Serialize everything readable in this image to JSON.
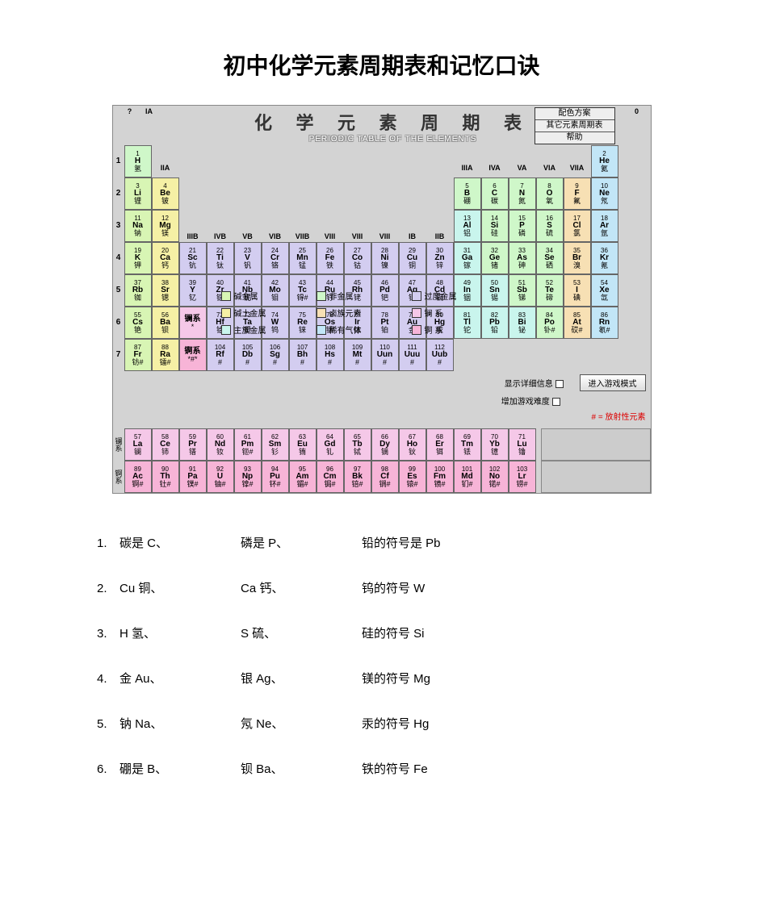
{
  "page_title": "初中化学元素周期表和记忆口诀",
  "pt_title_cn": "化 学 元 素 周 期 表",
  "pt_title_en": "PERIODIC TABLE OF THE ELEMENTS",
  "top_right": {
    "a": "配色方案",
    "b": "其它元素周期表",
    "c": "帮助"
  },
  "group_headers_all": [
    "IA",
    "IIA",
    "IIIB",
    "IVB",
    "VB",
    "VIB",
    "VIIB",
    "VIII",
    "VIII",
    "VIII",
    "IB",
    "IIB",
    "IIIA",
    "IVA",
    "VA",
    "VIA",
    "VIIA",
    "0"
  ],
  "period_labels": [
    "1",
    "2",
    "3",
    "4",
    "5",
    "6",
    "7"
  ],
  "legend_items": [
    {
      "label": "碱金属",
      "color": "#d8f5b4"
    },
    {
      "label": "非金属",
      "color": "#cff7c9"
    },
    {
      "label": "过度金属",
      "color": "#d3cdf0"
    },
    {
      "label": "碱土金属",
      "color": "#f5f0a5"
    },
    {
      "label": "卤族元素",
      "color": "#f7e0b4"
    },
    {
      "label": "镧  系",
      "color": "#f5c8e8"
    },
    {
      "label": "主族金属",
      "color": "#c9f5ed"
    },
    {
      "label": "稀有气体",
      "color": "#c2e6f7"
    },
    {
      "label": "锕  系",
      "color": "#f7b4d7"
    }
  ],
  "colors": {
    "alkali": "#d8f5b4",
    "alkearth": "#f5f0a5",
    "transition": "#d3cdf0",
    "posttrans": "#c9f5ed",
    "metalloid": "#cff7c9",
    "nonmetal": "#cff7c9",
    "halogen": "#f7e0b4",
    "noble": "#c2e6f7",
    "lanth": "#f5c8e8",
    "act": "#f7b4d7",
    "unknown": "#e8e8e8",
    "header_bg": "#d3d3d3"
  },
  "elements_row1": [
    {
      "n": "1",
      "s": "H",
      "c": "氢",
      "k": "nonmetal"
    },
    {
      "n": "2",
      "s": "He",
      "c": "氦",
      "k": "noble"
    }
  ],
  "elements_row2": [
    {
      "n": "3",
      "s": "Li",
      "c": "锂",
      "k": "alkali"
    },
    {
      "n": "4",
      "s": "Be",
      "c": "铍",
      "k": "alkearth"
    },
    {
      "n": "5",
      "s": "B",
      "c": "硼",
      "k": "metalloid"
    },
    {
      "n": "6",
      "s": "C",
      "c": "碳",
      "k": "nonmetal"
    },
    {
      "n": "7",
      "s": "N",
      "c": "氮",
      "k": "nonmetal"
    },
    {
      "n": "8",
      "s": "O",
      "c": "氧",
      "k": "nonmetal"
    },
    {
      "n": "9",
      "s": "F",
      "c": "氟",
      "k": "halogen"
    },
    {
      "n": "10",
      "s": "Ne",
      "c": "氖",
      "k": "noble"
    }
  ],
  "elements_row3": [
    {
      "n": "11",
      "s": "Na",
      "c": "钠",
      "k": "alkali"
    },
    {
      "n": "12",
      "s": "Mg",
      "c": "镁",
      "k": "alkearth"
    },
    {
      "n": "13",
      "s": "Al",
      "c": "铝",
      "k": "posttrans"
    },
    {
      "n": "14",
      "s": "Si",
      "c": "硅",
      "k": "metalloid"
    },
    {
      "n": "15",
      "s": "P",
      "c": "磷",
      "k": "nonmetal"
    },
    {
      "n": "16",
      "s": "S",
      "c": "硫",
      "k": "nonmetal"
    },
    {
      "n": "17",
      "s": "Cl",
      "c": "氯",
      "k": "halogen"
    },
    {
      "n": "18",
      "s": "Ar",
      "c": "氩",
      "k": "noble"
    }
  ],
  "elements_row4": [
    {
      "n": "19",
      "s": "K",
      "c": "钾",
      "k": "alkali"
    },
    {
      "n": "20",
      "s": "Ca",
      "c": "钙",
      "k": "alkearth"
    },
    {
      "n": "21",
      "s": "Sc",
      "c": "钪",
      "k": "transition"
    },
    {
      "n": "22",
      "s": "Ti",
      "c": "钛",
      "k": "transition"
    },
    {
      "n": "23",
      "s": "V",
      "c": "钒",
      "k": "transition"
    },
    {
      "n": "24",
      "s": "Cr",
      "c": "铬",
      "k": "transition"
    },
    {
      "n": "25",
      "s": "Mn",
      "c": "锰",
      "k": "transition"
    },
    {
      "n": "26",
      "s": "Fe",
      "c": "铁",
      "k": "transition"
    },
    {
      "n": "27",
      "s": "Co",
      "c": "钴",
      "k": "transition"
    },
    {
      "n": "28",
      "s": "Ni",
      "c": "镍",
      "k": "transition"
    },
    {
      "n": "29",
      "s": "Cu",
      "c": "铜",
      "k": "transition"
    },
    {
      "n": "30",
      "s": "Zn",
      "c": "锌",
      "k": "transition"
    },
    {
      "n": "31",
      "s": "Ga",
      "c": "镓",
      "k": "posttrans"
    },
    {
      "n": "32",
      "s": "Ge",
      "c": "锗",
      "k": "metalloid"
    },
    {
      "n": "33",
      "s": "As",
      "c": "砷",
      "k": "metalloid"
    },
    {
      "n": "34",
      "s": "Se",
      "c": "硒",
      "k": "nonmetal"
    },
    {
      "n": "35",
      "s": "Br",
      "c": "溴",
      "k": "halogen"
    },
    {
      "n": "36",
      "s": "Kr",
      "c": "氪",
      "k": "noble"
    }
  ],
  "elements_row5": [
    {
      "n": "37",
      "s": "Rb",
      "c": "铷",
      "k": "alkali"
    },
    {
      "n": "38",
      "s": "Sr",
      "c": "锶",
      "k": "alkearth"
    },
    {
      "n": "39",
      "s": "Y",
      "c": "钇",
      "k": "transition"
    },
    {
      "n": "40",
      "s": "Zr",
      "c": "锆",
      "k": "transition"
    },
    {
      "n": "41",
      "s": "Nb",
      "c": "铌",
      "k": "transition"
    },
    {
      "n": "42",
      "s": "Mo",
      "c": "钼",
      "k": "transition"
    },
    {
      "n": "43",
      "s": "Tc",
      "c": "锝#",
      "k": "transition"
    },
    {
      "n": "44",
      "s": "Ru",
      "c": "钌",
      "k": "transition"
    },
    {
      "n": "45",
      "s": "Rh",
      "c": "铑",
      "k": "transition"
    },
    {
      "n": "46",
      "s": "Pd",
      "c": "钯",
      "k": "transition"
    },
    {
      "n": "47",
      "s": "Ag",
      "c": "银",
      "k": "transition"
    },
    {
      "n": "48",
      "s": "Cd",
      "c": "镉",
      "k": "transition"
    },
    {
      "n": "49",
      "s": "In",
      "c": "铟",
      "k": "posttrans"
    },
    {
      "n": "50",
      "s": "Sn",
      "c": "锡",
      "k": "posttrans"
    },
    {
      "n": "51",
      "s": "Sb",
      "c": "锑",
      "k": "metalloid"
    },
    {
      "n": "52",
      "s": "Te",
      "c": "碲",
      "k": "metalloid"
    },
    {
      "n": "53",
      "s": "I",
      "c": "碘",
      "k": "halogen"
    },
    {
      "n": "54",
      "s": "Xe",
      "c": "氙",
      "k": "noble"
    }
  ],
  "elements_row6": [
    {
      "n": "55",
      "s": "Cs",
      "c": "铯",
      "k": "alkali"
    },
    {
      "n": "56",
      "s": "Ba",
      "c": "钡",
      "k": "alkearth"
    },
    {
      "n": "",
      "s": "镧系",
      "c": "*",
      "k": "lanth"
    },
    {
      "n": "72",
      "s": "Hf",
      "c": "铪",
      "k": "transition"
    },
    {
      "n": "73",
      "s": "Ta",
      "c": "钽",
      "k": "transition"
    },
    {
      "n": "74",
      "s": "W",
      "c": "钨",
      "k": "transition"
    },
    {
      "n": "75",
      "s": "Re",
      "c": "铼",
      "k": "transition"
    },
    {
      "n": "76",
      "s": "Os",
      "c": "锇",
      "k": "transition"
    },
    {
      "n": "77",
      "s": "Ir",
      "c": "铱",
      "k": "transition"
    },
    {
      "n": "78",
      "s": "Pt",
      "c": "铂",
      "k": "transition"
    },
    {
      "n": "79",
      "s": "Au",
      "c": "金",
      "k": "transition"
    },
    {
      "n": "80",
      "s": "Hg",
      "c": "汞",
      "k": "transition"
    },
    {
      "n": "81",
      "s": "Tl",
      "c": "铊",
      "k": "posttrans"
    },
    {
      "n": "82",
      "s": "Pb",
      "c": "铅",
      "k": "posttrans"
    },
    {
      "n": "83",
      "s": "Bi",
      "c": "铋",
      "k": "posttrans"
    },
    {
      "n": "84",
      "s": "Po",
      "c": "钋#",
      "k": "metalloid"
    },
    {
      "n": "85",
      "s": "At",
      "c": "砹#",
      "k": "halogen"
    },
    {
      "n": "86",
      "s": "Rn",
      "c": "氡#",
      "k": "noble"
    }
  ],
  "elements_row7": [
    {
      "n": "87",
      "s": "Fr",
      "c": "钫#",
      "k": "alkali"
    },
    {
      "n": "88",
      "s": "Ra",
      "c": "镭#",
      "k": "alkearth"
    },
    {
      "n": "",
      "s": "锕系",
      "c": "*#*",
      "k": "act"
    },
    {
      "n": "104",
      "s": "Rf",
      "c": "#",
      "k": "transition"
    },
    {
      "n": "105",
      "s": "Db",
      "c": "#",
      "k": "transition"
    },
    {
      "n": "106",
      "s": "Sg",
      "c": "#",
      "k": "transition"
    },
    {
      "n": "107",
      "s": "Bh",
      "c": "#",
      "k": "transition"
    },
    {
      "n": "108",
      "s": "Hs",
      "c": "#",
      "k": "transition"
    },
    {
      "n": "109",
      "s": "Mt",
      "c": "#",
      "k": "transition"
    },
    {
      "n": "110",
      "s": "Uun",
      "c": "#",
      "k": "transition"
    },
    {
      "n": "111",
      "s": "Uuu",
      "c": "#",
      "k": "transition"
    },
    {
      "n": "112",
      "s": "Uub",
      "c": "#",
      "k": "transition"
    }
  ],
  "lanthanides": [
    {
      "n": "57",
      "s": "La",
      "c": "镧",
      "k": "lanth"
    },
    {
      "n": "58",
      "s": "Ce",
      "c": "铈",
      "k": "lanth"
    },
    {
      "n": "59",
      "s": "Pr",
      "c": "镨",
      "k": "lanth"
    },
    {
      "n": "60",
      "s": "Nd",
      "c": "钕",
      "k": "lanth"
    },
    {
      "n": "61",
      "s": "Pm",
      "c": "钷#",
      "k": "lanth"
    },
    {
      "n": "62",
      "s": "Sm",
      "c": "钐",
      "k": "lanth"
    },
    {
      "n": "63",
      "s": "Eu",
      "c": "铕",
      "k": "lanth"
    },
    {
      "n": "64",
      "s": "Gd",
      "c": "钆",
      "k": "lanth"
    },
    {
      "n": "65",
      "s": "Tb",
      "c": "铽",
      "k": "lanth"
    },
    {
      "n": "66",
      "s": "Dy",
      "c": "镝",
      "k": "lanth"
    },
    {
      "n": "67",
      "s": "Ho",
      "c": "钬",
      "k": "lanth"
    },
    {
      "n": "68",
      "s": "Er",
      "c": "铒",
      "k": "lanth"
    },
    {
      "n": "69",
      "s": "Tm",
      "c": "铥",
      "k": "lanth"
    },
    {
      "n": "70",
      "s": "Yb",
      "c": "镱",
      "k": "lanth"
    },
    {
      "n": "71",
      "s": "Lu",
      "c": "镥",
      "k": "lanth"
    }
  ],
  "actinides": [
    {
      "n": "89",
      "s": "Ac",
      "c": "锕#",
      "k": "act"
    },
    {
      "n": "90",
      "s": "Th",
      "c": "钍#",
      "k": "act"
    },
    {
      "n": "91",
      "s": "Pa",
      "c": "镤#",
      "k": "act"
    },
    {
      "n": "92",
      "s": "U",
      "c": "铀#",
      "k": "act"
    },
    {
      "n": "93",
      "s": "Np",
      "c": "镎#",
      "k": "act"
    },
    {
      "n": "94",
      "s": "Pu",
      "c": "钚#",
      "k": "act"
    },
    {
      "n": "95",
      "s": "Am",
      "c": "镅#",
      "k": "act"
    },
    {
      "n": "96",
      "s": "Cm",
      "c": "锔#",
      "k": "act"
    },
    {
      "n": "97",
      "s": "Bk",
      "c": "锫#",
      "k": "act"
    },
    {
      "n": "98",
      "s": "Cf",
      "c": "锎#",
      "k": "act"
    },
    {
      "n": "99",
      "s": "Es",
      "c": "锿#",
      "k": "act"
    },
    {
      "n": "100",
      "s": "Fm",
      "c": "镄#",
      "k": "act"
    },
    {
      "n": "101",
      "s": "Md",
      "c": "钔#",
      "k": "act"
    },
    {
      "n": "102",
      "s": "No",
      "c": "锘#",
      "k": "act"
    },
    {
      "n": "103",
      "s": "Lr",
      "c": "铹#",
      "k": "act"
    }
  ],
  "controls": {
    "chk1": "显示详细信息",
    "chk2": "增加游戏难度",
    "btn": "进入游戏模式"
  },
  "red_note": "# = 放射性元素",
  "fs_labels": {
    "lan": "镧系",
    "act": "锕系"
  },
  "mnemonics": [
    {
      "num": "1.",
      "a": "碳是 C、",
      "b": "磷是 P、",
      "c": "铅的符号是 Pb"
    },
    {
      "num": "2.",
      "a": "Cu 铜、",
      "b": "Ca 钙、",
      "c": "钨的符号 W"
    },
    {
      "num": "3.",
      "a": "H 氢、",
      "b": "S 硫、",
      "c": "硅的符号 Si"
    },
    {
      "num": "4.",
      "a": "金 Au、",
      "b": "银 Ag、",
      "c": "镁的符号 Mg"
    },
    {
      "num": "5.",
      "a": "钠 Na、",
      "b": "氖 Ne、",
      "c": "汞的符号 Hg"
    },
    {
      "num": "6.",
      "a": "硼是 B、",
      "b": "钡 Ba、",
      "c": "铁的符号 Fe"
    }
  ]
}
